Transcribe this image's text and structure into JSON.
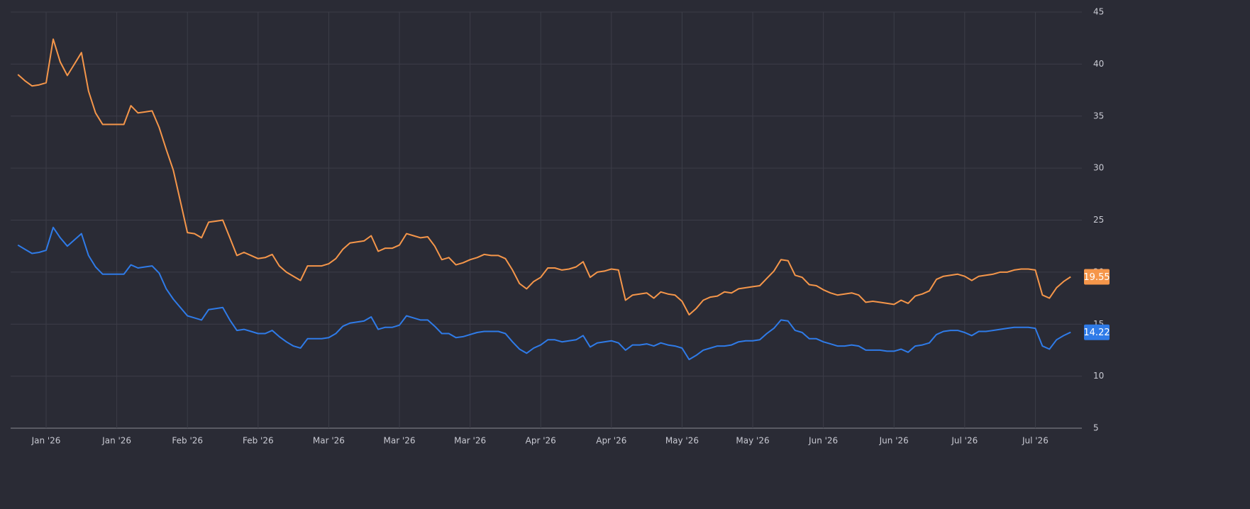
{
  "chart_data": {
    "type": "line",
    "categories": [
      null,
      null,
      null,
      null,
      "Jan '26",
      null,
      null,
      null,
      null,
      null,
      null,
      null,
      null,
      null,
      "Jan '26",
      null,
      null,
      null,
      null,
      null,
      null,
      null,
      null,
      null,
      "Feb '26",
      null,
      null,
      null,
      null,
      null,
      null,
      null,
      null,
      null,
      "Feb '26",
      null,
      null,
      null,
      null,
      null,
      null,
      null,
      null,
      null,
      "Mar '26",
      null,
      null,
      null,
      null,
      null,
      null,
      null,
      null,
      null,
      "Mar '26",
      null,
      null,
      null,
      null,
      null,
      null,
      null,
      null,
      null,
      "Mar '26",
      null,
      null,
      null,
      null,
      null,
      null,
      null,
      null,
      null,
      "Apr '26",
      null,
      null,
      null,
      null,
      null,
      null,
      null,
      null,
      null,
      "Apr '26",
      null,
      null,
      null,
      null,
      null,
      null,
      null,
      null,
      null,
      "May '26",
      null,
      null,
      null,
      null,
      null,
      null,
      null,
      null,
      null,
      "May '26",
      null,
      null,
      null,
      null,
      null,
      null,
      null,
      null,
      null,
      "Jun '26",
      null,
      null,
      null,
      null,
      null,
      null,
      null,
      null,
      null,
      "Jun '26",
      null,
      null,
      null,
      null,
      null,
      null,
      null,
      null,
      null,
      "Jul '26",
      null,
      null,
      null,
      null,
      null,
      null,
      null,
      null,
      null,
      "Jul '26",
      null,
      null,
      null,
      null,
      null
    ],
    "series": [
      {
        "color": "#f5964a",
        "values": [
          39.0,
          38.4,
          37.9,
          38.0,
          38.2,
          42.4,
          40.2,
          38.9,
          40.0,
          41.1,
          37.4,
          35.3,
          34.2,
          34.2,
          34.2,
          34.2,
          36.0,
          35.3,
          35.4,
          35.5,
          33.9,
          31.8,
          29.8,
          26.8,
          23.8,
          23.7,
          23.3,
          24.8,
          24.9,
          25.0,
          23.3,
          21.6,
          21.9,
          21.6,
          21.3,
          21.4,
          21.7,
          20.6,
          20.0,
          19.6,
          19.2,
          20.6,
          20.6,
          20.6,
          20.8,
          21.3,
          22.2,
          22.8,
          22.9,
          23.0,
          23.5,
          22.0,
          22.3,
          22.3,
          22.6,
          23.7,
          23.5,
          23.3,
          23.4,
          22.5,
          21.2,
          21.4,
          20.7,
          20.9,
          21.2,
          21.4,
          21.7,
          21.6,
          21.6,
          21.3,
          20.2,
          18.9,
          18.4,
          19.1,
          19.5,
          20.4,
          20.4,
          20.2,
          20.3,
          20.5,
          21.0,
          19.5,
          20.0,
          20.1,
          20.3,
          20.2,
          17.3,
          17.8,
          17.9,
          18.0,
          17.5,
          18.1,
          17.9,
          17.8,
          17.2,
          15.9,
          16.5,
          17.3,
          17.6,
          17.7,
          18.1,
          18.0,
          18.4,
          18.5,
          18.6,
          18.7,
          19.4,
          20.1,
          21.2,
          21.1,
          19.7,
          19.5,
          18.8,
          18.7,
          18.3,
          18.0,
          17.8,
          17.9,
          18.0,
          17.8,
          17.1,
          17.2,
          17.1,
          17.0,
          16.9,
          17.3,
          17.0,
          17.7,
          17.9,
          18.2,
          19.3,
          19.6,
          19.7,
          19.8,
          19.6,
          19.2,
          19.6,
          19.7,
          19.8,
          20.0,
          20.0,
          20.2,
          20.3,
          20.3,
          20.2,
          17.8,
          17.5,
          18.5,
          19.1,
          19.55
        ]
      },
      {
        "color": "#2f7be8",
        "values": [
          22.6,
          22.2,
          21.8,
          21.9,
          22.1,
          24.3,
          23.3,
          22.5,
          23.1,
          23.7,
          21.6,
          20.5,
          19.8,
          19.8,
          19.8,
          19.8,
          20.7,
          20.4,
          20.5,
          20.6,
          19.9,
          18.4,
          17.4,
          16.6,
          15.8,
          15.6,
          15.4,
          16.4,
          16.5,
          16.6,
          15.4,
          14.4,
          14.5,
          14.3,
          14.1,
          14.1,
          14.4,
          13.8,
          13.3,
          12.9,
          12.7,
          13.6,
          13.6,
          13.6,
          13.7,
          14.1,
          14.8,
          15.1,
          15.2,
          15.3,
          15.7,
          14.5,
          14.7,
          14.7,
          14.9,
          15.8,
          15.6,
          15.4,
          15.4,
          14.8,
          14.1,
          14.1,
          13.7,
          13.8,
          14.0,
          14.2,
          14.3,
          14.3,
          14.3,
          14.1,
          13.3,
          12.6,
          12.2,
          12.7,
          13.0,
          13.5,
          13.5,
          13.3,
          13.4,
          13.5,
          13.9,
          12.8,
          13.2,
          13.3,
          13.4,
          13.2,
          12.5,
          13.0,
          13.0,
          13.1,
          12.9,
          13.2,
          13.0,
          12.9,
          12.7,
          11.6,
          12.0,
          12.5,
          12.7,
          12.9,
          12.9,
          13.0,
          13.3,
          13.4,
          13.4,
          13.5,
          14.1,
          14.6,
          15.4,
          15.3,
          14.4,
          14.2,
          13.6,
          13.6,
          13.3,
          13.1,
          12.9,
          12.9,
          13.0,
          12.9,
          12.5,
          12.5,
          12.5,
          12.4,
          12.4,
          12.6,
          12.3,
          12.9,
          13.0,
          13.2,
          14.0,
          14.3,
          14.4,
          14.4,
          14.2,
          13.9,
          14.3,
          14.3,
          14.4,
          14.5,
          14.6,
          14.7,
          14.7,
          14.7,
          14.6,
          12.9,
          12.6,
          13.5,
          13.9,
          14.22
        ]
      }
    ],
    "ylim": [
      5,
      45
    ],
    "yticks": [
      5,
      10,
      15,
      20,
      25,
      30,
      35,
      40,
      45
    ],
    "grid": true,
    "axis_side": "right"
  }
}
